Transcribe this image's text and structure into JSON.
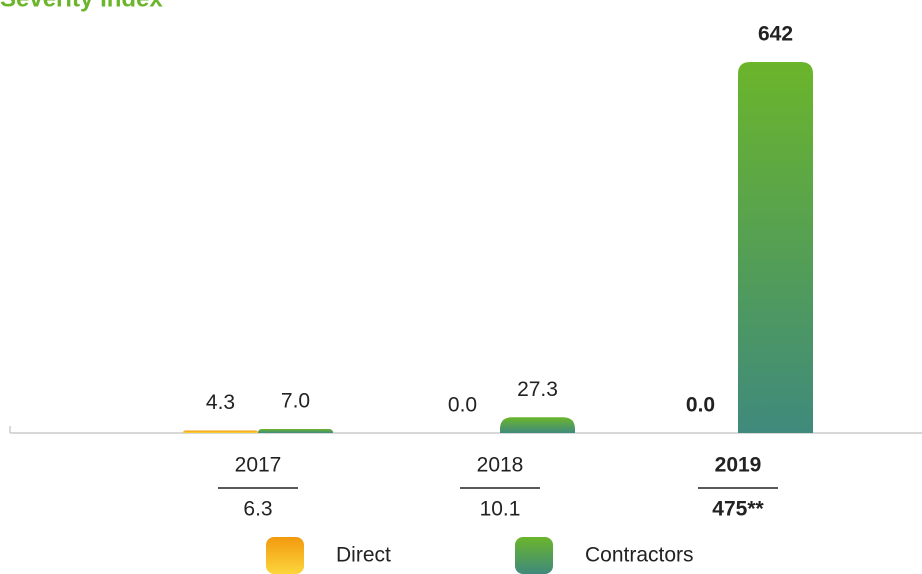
{
  "chart_data": {
    "type": "bar",
    "title": "Severity Index",
    "categories": [
      "2017",
      "2018",
      "2019"
    ],
    "totals": [
      "6.3",
      "10.1",
      "475**"
    ],
    "highlight_index": 2,
    "series": [
      {
        "name": "Direct",
        "colors": [
          "#f29a0e",
          "#fcd53c"
        ],
        "values": [
          4.3,
          0,
          0
        ],
        "value_labels": [
          "4.3",
          "0.0",
          "0.0"
        ]
      },
      {
        "name": "Contractors",
        "colors": [
          "#6bb52b",
          "#3f8a7c"
        ],
        "values": [
          7,
          27.3,
          642
        ],
        "value_labels": [
          "7.0",
          "27.3",
          "642"
        ]
      }
    ]
  }
}
